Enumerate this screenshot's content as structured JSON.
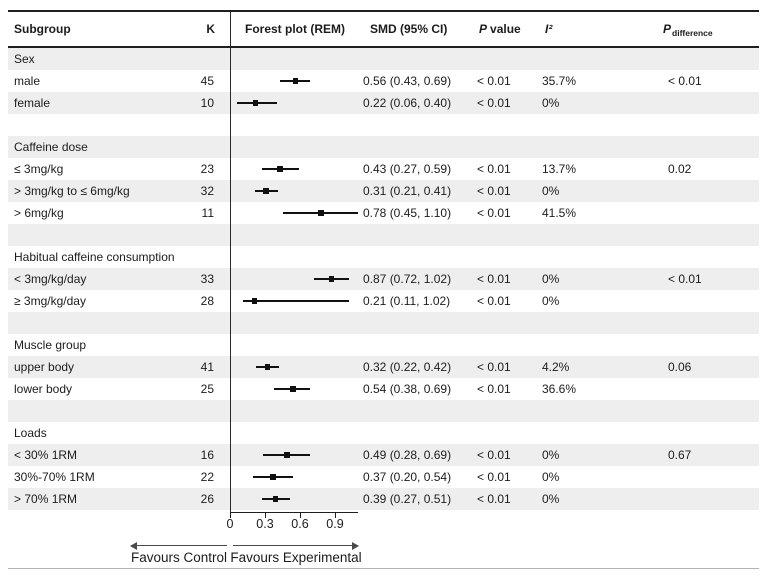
{
  "colors": {
    "shade": "#eeeeee",
    "rule": "#1f1f1f",
    "ink": "#1c1c1c",
    "marker": "#111111",
    "lightrule": "#b3b3b3",
    "arrow": "#4a4a4a"
  },
  "chart_data": {
    "type": "table",
    "title": "",
    "columns": {
      "subgroup": "Subgroup",
      "k": "K",
      "forest": "Forest plot (REM)",
      "smd": "SMD (95% CI)",
      "p_italic": "P",
      "p_rest": "value",
      "i2": "I²",
      "pdiff_italic": "P",
      "pdiff_sub": "difference"
    },
    "axis": {
      "ticks": [
        {
          "v": 0,
          "label": "0"
        },
        {
          "v": 0.3,
          "label": "0.3"
        },
        {
          "v": 0.6,
          "label": "0.6"
        },
        {
          "v": 0.9,
          "label": "0.9"
        }
      ],
      "xlim": [
        0,
        1.1
      ],
      "left_label": "Favours Control",
      "right_label": "Favours Experimental"
    },
    "rows": [
      {
        "type": "section",
        "label": "Sex"
      },
      {
        "type": "data",
        "label": "male",
        "k": "45",
        "smd": 0.56,
        "lo": 0.43,
        "hi": 0.69,
        "smd_ci": "0.56 (0.43, 0.69)",
        "p": "< 0.01",
        "i2": "35.7%",
        "pdiff": "< 0.01"
      },
      {
        "type": "data",
        "label": "female",
        "k": "10",
        "smd": 0.22,
        "lo": 0.06,
        "hi": 0.4,
        "smd_ci": "0.22 (0.06, 0.40)",
        "p": "< 0.01",
        "i2": "0%",
        "pdiff": ""
      },
      {
        "type": "blank"
      },
      {
        "type": "section",
        "label": "Caffeine dose"
      },
      {
        "type": "data",
        "label": "≤ 3mg/kg",
        "k": "23",
        "smd": 0.43,
        "lo": 0.27,
        "hi": 0.59,
        "smd_ci": "0.43 (0.27, 0.59)",
        "p": "< 0.01",
        "i2": "13.7%",
        "pdiff": "0.02"
      },
      {
        "type": "data",
        "label": "> 3mg/kg to ≤ 6mg/kg",
        "k": "32",
        "smd": 0.31,
        "lo": 0.21,
        "hi": 0.41,
        "smd_ci": "0.31 (0.21, 0.41)",
        "p": "< 0.01",
        "i2": "0%",
        "pdiff": ""
      },
      {
        "type": "data",
        "label": "> 6mg/kg",
        "k": "11",
        "smd": 0.78,
        "lo": 0.45,
        "hi": 1.1,
        "smd_ci": "0.78 (0.45, 1.10)",
        "p": "< 0.01",
        "i2": "41.5%",
        "pdiff": ""
      },
      {
        "type": "blank"
      },
      {
        "type": "section",
        "label": "Habitual caffeine consumption"
      },
      {
        "type": "data",
        "label": "< 3mg/kg/day",
        "k": "33",
        "smd": 0.87,
        "lo": 0.72,
        "hi": 1.02,
        "smd_ci": "0.87 (0.72, 1.02)",
        "p": "< 0.01",
        "i2": "0%",
        "pdiff": "< 0.01"
      },
      {
        "type": "data",
        "label": "≥ 3mg/kg/day",
        "k": "28",
        "smd": 0.21,
        "lo": 0.11,
        "hi": 1.02,
        "smd_ci": "0.21 (0.11, 1.02)",
        "p": "< 0.01",
        "i2": "0%",
        "pdiff": ""
      },
      {
        "type": "blank"
      },
      {
        "type": "section",
        "label": "Muscle group"
      },
      {
        "type": "data",
        "label": "upper body",
        "k": "41",
        "smd": 0.32,
        "lo": 0.22,
        "hi": 0.42,
        "smd_ci": "0.32 (0.22, 0.42)",
        "p": "< 0.01",
        "i2": "4.2%",
        "pdiff": "0.06"
      },
      {
        "type": "data",
        "label": "lower body",
        "k": "25",
        "smd": 0.54,
        "lo": 0.38,
        "hi": 0.69,
        "smd_ci": "0.54 (0.38, 0.69)",
        "p": "< 0.01",
        "i2": "36.6%",
        "pdiff": ""
      },
      {
        "type": "blank"
      },
      {
        "type": "section",
        "label": "Loads"
      },
      {
        "type": "data",
        "label": "< 30% 1RM",
        "k": "16",
        "smd": 0.49,
        "lo": 0.28,
        "hi": 0.69,
        "smd_ci": "0.49 (0.28, 0.69)",
        "p": "< 0.01",
        "i2": "0%",
        "pdiff": "0.67"
      },
      {
        "type": "data",
        "label": "30%-70% 1RM",
        "k": "22",
        "smd": 0.37,
        "lo": 0.2,
        "hi": 0.54,
        "smd_ci": "0.37 (0.20, 0.54)",
        "p": "< 0.01",
        "i2": "0%",
        "pdiff": ""
      },
      {
        "type": "data",
        "label": "> 70% 1RM",
        "k": "26",
        "smd": 0.39,
        "lo": 0.27,
        "hi": 0.51,
        "smd_ci": "0.39 (0.27, 0.51)",
        "p": "< 0.01",
        "i2": "0%",
        "pdiff": ""
      }
    ]
  }
}
